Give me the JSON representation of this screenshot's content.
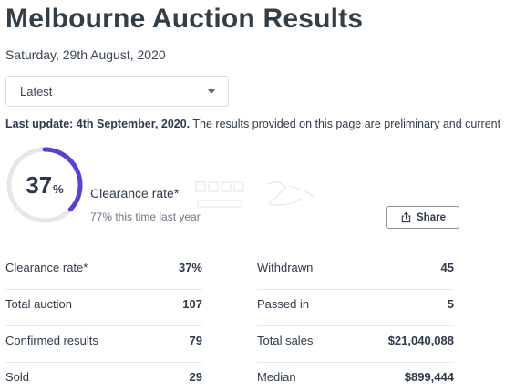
{
  "header": {
    "title": "Melbourne Auction Results",
    "date": "Saturday, 29th August, 2020"
  },
  "filter": {
    "selected": "Latest"
  },
  "update": {
    "bold": "Last update: 4th September, 2020.",
    "text": " The results provided on this page are preliminary and current"
  },
  "clearance": {
    "value": "37",
    "unit": "%",
    "fraction": 0.37,
    "label": "Clearance rate*",
    "last_year": "77% this time last year"
  },
  "share": {
    "label": "Share"
  },
  "stats_left": [
    {
      "label": "Clearance rate*",
      "value": "37%"
    },
    {
      "label": "Total auction",
      "value": "107"
    },
    {
      "label": "Confirmed results",
      "value": "79"
    },
    {
      "label": "Sold",
      "value": "29"
    }
  ],
  "stats_right": [
    {
      "label": "Withdrawn",
      "value": "45"
    },
    {
      "label": "Passed in",
      "value": "5"
    },
    {
      "label": "Total sales",
      "value": "$21,040,088"
    },
    {
      "label": "Median",
      "value": "$899,444"
    }
  ],
  "colors": {
    "ring_track": "#e4e7eb",
    "ring_progress": "#5b3fd6"
  }
}
